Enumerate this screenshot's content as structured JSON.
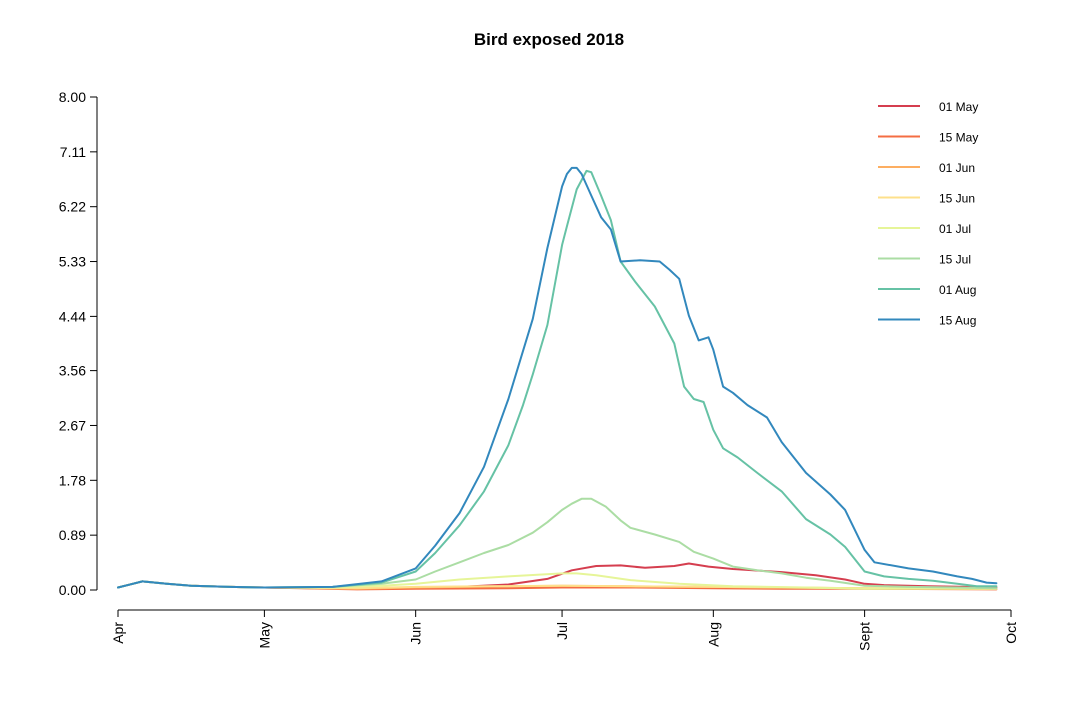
{
  "chart_data": {
    "type": "line",
    "title": "Bird exposed 2018",
    "xlabel": "",
    "ylabel": "",
    "ylim": [
      0,
      8
    ],
    "xlim": [
      "2018-04-01",
      "2018-10-01"
    ],
    "y_ticks": [
      "0.00",
      "0.89",
      "1.78",
      "2.67",
      "3.56",
      "4.44",
      "5.33",
      "6.22",
      "7.11",
      "8.00"
    ],
    "x_ticks": [
      {
        "label": "Apr",
        "date": "2018-04-01"
      },
      {
        "label": "May",
        "date": "2018-05-01"
      },
      {
        "label": "Jun",
        "date": "2018-06-01"
      },
      {
        "label": "Jul",
        "date": "2018-07-01"
      },
      {
        "label": "Aug",
        "date": "2018-08-01"
      },
      {
        "label": "Sept",
        "date": "2018-09-01"
      },
      {
        "label": "Oct",
        "date": "2018-10-01"
      }
    ],
    "grid": false,
    "legend_position": "top-right",
    "series": [
      {
        "name": "01 May",
        "color": "#d53e4f",
        "points": [
          [
            "2018-04-01",
            0.04
          ],
          [
            "2018-04-06",
            0.14
          ],
          [
            "2018-04-11",
            0.1
          ],
          [
            "2018-04-16",
            0.07
          ],
          [
            "2018-04-24",
            0.05
          ],
          [
            "2018-05-01",
            0.04
          ],
          [
            "2018-05-20",
            0.02
          ],
          [
            "2018-06-01",
            0.03
          ],
          [
            "2018-06-10",
            0.05
          ],
          [
            "2018-06-20",
            0.09
          ],
          [
            "2018-06-28",
            0.18
          ],
          [
            "2018-07-03",
            0.32
          ],
          [
            "2018-07-08",
            0.39
          ],
          [
            "2018-07-13",
            0.4
          ],
          [
            "2018-07-18",
            0.36
          ],
          [
            "2018-07-24",
            0.39
          ],
          [
            "2018-07-27",
            0.43
          ],
          [
            "2018-07-31",
            0.38
          ],
          [
            "2018-08-05",
            0.34
          ],
          [
            "2018-08-15",
            0.29
          ],
          [
            "2018-08-22",
            0.24
          ],
          [
            "2018-08-28",
            0.17
          ],
          [
            "2018-09-01",
            0.1
          ],
          [
            "2018-09-05",
            0.08
          ],
          [
            "2018-09-14",
            0.06
          ],
          [
            "2018-09-22",
            0.05
          ],
          [
            "2018-09-28",
            0.04
          ]
        ]
      },
      {
        "name": "15 May",
        "color": "#f46d43",
        "points": [
          [
            "2018-04-01",
            0.04
          ],
          [
            "2018-04-06",
            0.14
          ],
          [
            "2018-04-11",
            0.1
          ],
          [
            "2018-04-16",
            0.07
          ],
          [
            "2018-04-24",
            0.05
          ],
          [
            "2018-05-01",
            0.04
          ],
          [
            "2018-05-20",
            0.01
          ],
          [
            "2018-06-01",
            0.02
          ],
          [
            "2018-06-20",
            0.03
          ],
          [
            "2018-07-01",
            0.04
          ],
          [
            "2018-07-15",
            0.04
          ],
          [
            "2018-08-01",
            0.03
          ],
          [
            "2018-08-15",
            0.02
          ],
          [
            "2018-09-01",
            0.02
          ],
          [
            "2018-09-28",
            0.01
          ]
        ]
      },
      {
        "name": "01 Jun",
        "color": "#fdae61",
        "points": [
          [
            "2018-04-01",
            0.04
          ],
          [
            "2018-04-06",
            0.14
          ],
          [
            "2018-04-11",
            0.1
          ],
          [
            "2018-04-16",
            0.07
          ],
          [
            "2018-04-24",
            0.05
          ],
          [
            "2018-05-01",
            0.04
          ],
          [
            "2018-05-20",
            0.02
          ],
          [
            "2018-06-01",
            0.04
          ],
          [
            "2018-06-20",
            0.06
          ],
          [
            "2018-07-01",
            0.07
          ],
          [
            "2018-07-15",
            0.06
          ],
          [
            "2018-08-01",
            0.05
          ],
          [
            "2018-08-15",
            0.04
          ],
          [
            "2018-09-01",
            0.03
          ],
          [
            "2018-09-28",
            0.02
          ]
        ]
      },
      {
        "name": "15 Jun",
        "color": "#fee08b",
        "points": [
          [
            "2018-04-01",
            0.04
          ],
          [
            "2018-04-06",
            0.14
          ],
          [
            "2018-04-11",
            0.1
          ],
          [
            "2018-04-16",
            0.07
          ],
          [
            "2018-04-24",
            0.05
          ],
          [
            "2018-05-01",
            0.04
          ],
          [
            "2018-05-20",
            0.03
          ],
          [
            "2018-06-01",
            0.05
          ],
          [
            "2018-06-15",
            0.06
          ],
          [
            "2018-07-01",
            0.07
          ],
          [
            "2018-07-15",
            0.06
          ],
          [
            "2018-08-01",
            0.05
          ],
          [
            "2018-08-15",
            0.04
          ],
          [
            "2018-09-01",
            0.03
          ],
          [
            "2018-09-28",
            0.02
          ]
        ]
      },
      {
        "name": "01 Jul",
        "color": "#e6f598",
        "points": [
          [
            "2018-04-01",
            0.04
          ],
          [
            "2018-04-06",
            0.14
          ],
          [
            "2018-04-11",
            0.1
          ],
          [
            "2018-04-16",
            0.07
          ],
          [
            "2018-04-24",
            0.05
          ],
          [
            "2018-05-01",
            0.04
          ],
          [
            "2018-05-15",
            0.04
          ],
          [
            "2018-05-25",
            0.07
          ],
          [
            "2018-06-01",
            0.1
          ],
          [
            "2018-06-10",
            0.17
          ],
          [
            "2018-06-20",
            0.22
          ],
          [
            "2018-07-01",
            0.27
          ],
          [
            "2018-07-04",
            0.27
          ],
          [
            "2018-07-08",
            0.24
          ],
          [
            "2018-07-15",
            0.16
          ],
          [
            "2018-07-25",
            0.1
          ],
          [
            "2018-08-05",
            0.06
          ],
          [
            "2018-08-20",
            0.04
          ],
          [
            "2018-09-01",
            0.02
          ],
          [
            "2018-09-28",
            0.02
          ]
        ]
      },
      {
        "name": "15 Jul",
        "color": "#abdda4",
        "points": [
          [
            "2018-04-01",
            0.04
          ],
          [
            "2018-04-06",
            0.14
          ],
          [
            "2018-04-11",
            0.1
          ],
          [
            "2018-04-16",
            0.07
          ],
          [
            "2018-04-24",
            0.05
          ],
          [
            "2018-05-01",
            0.04
          ],
          [
            "2018-05-15",
            0.05
          ],
          [
            "2018-05-25",
            0.1
          ],
          [
            "2018-06-01",
            0.17
          ],
          [
            "2018-06-05",
            0.3
          ],
          [
            "2018-06-10",
            0.45
          ],
          [
            "2018-06-15",
            0.6
          ],
          [
            "2018-06-20",
            0.73
          ],
          [
            "2018-06-25",
            0.93
          ],
          [
            "2018-06-28",
            1.1
          ],
          [
            "2018-07-01",
            1.3
          ],
          [
            "2018-07-03",
            1.4
          ],
          [
            "2018-07-05",
            1.48
          ],
          [
            "2018-07-07",
            1.48
          ],
          [
            "2018-07-10",
            1.35
          ],
          [
            "2018-07-13",
            1.13
          ],
          [
            "2018-07-15",
            1.01
          ],
          [
            "2018-07-20",
            0.9
          ],
          [
            "2018-07-25",
            0.78
          ],
          [
            "2018-07-28",
            0.62
          ],
          [
            "2018-08-01",
            0.51
          ],
          [
            "2018-08-05",
            0.38
          ],
          [
            "2018-08-10",
            0.32
          ],
          [
            "2018-08-15",
            0.27
          ],
          [
            "2018-08-20",
            0.2
          ],
          [
            "2018-08-25",
            0.15
          ],
          [
            "2018-09-01",
            0.07
          ],
          [
            "2018-09-10",
            0.05
          ],
          [
            "2018-09-20",
            0.04
          ],
          [
            "2018-09-28",
            0.03
          ]
        ]
      },
      {
        "name": "01 Aug",
        "color": "#66c2a5",
        "points": [
          [
            "2018-04-01",
            0.04
          ],
          [
            "2018-04-06",
            0.14
          ],
          [
            "2018-04-11",
            0.1
          ],
          [
            "2018-04-16",
            0.07
          ],
          [
            "2018-04-24",
            0.05
          ],
          [
            "2018-05-01",
            0.04
          ],
          [
            "2018-05-15",
            0.05
          ],
          [
            "2018-05-25",
            0.12
          ],
          [
            "2018-06-01",
            0.3
          ],
          [
            "2018-06-05",
            0.6
          ],
          [
            "2018-06-10",
            1.05
          ],
          [
            "2018-06-15",
            1.6
          ],
          [
            "2018-06-20",
            2.35
          ],
          [
            "2018-06-23",
            3.0
          ],
          [
            "2018-06-25",
            3.5
          ],
          [
            "2018-06-28",
            4.3
          ],
          [
            "2018-07-01",
            5.6
          ],
          [
            "2018-07-02",
            5.9
          ],
          [
            "2018-07-04",
            6.5
          ],
          [
            "2018-07-06",
            6.8
          ],
          [
            "2018-07-07",
            6.78
          ],
          [
            "2018-07-09",
            6.4
          ],
          [
            "2018-07-11",
            6.0
          ],
          [
            "2018-07-13",
            5.33
          ],
          [
            "2018-07-16",
            5.0
          ],
          [
            "2018-07-20",
            4.6
          ],
          [
            "2018-07-24",
            4.0
          ],
          [
            "2018-07-26",
            3.3
          ],
          [
            "2018-07-28",
            3.1
          ],
          [
            "2018-07-30",
            3.05
          ],
          [
            "2018-08-01",
            2.6
          ],
          [
            "2018-08-03",
            2.3
          ],
          [
            "2018-08-06",
            2.15
          ],
          [
            "2018-08-10",
            1.9
          ],
          [
            "2018-08-15",
            1.6
          ],
          [
            "2018-08-20",
            1.15
          ],
          [
            "2018-08-25",
            0.9
          ],
          [
            "2018-08-28",
            0.7
          ],
          [
            "2018-09-01",
            0.3
          ],
          [
            "2018-09-05",
            0.22
          ],
          [
            "2018-09-10",
            0.18
          ],
          [
            "2018-09-15",
            0.15
          ],
          [
            "2018-09-20",
            0.1
          ],
          [
            "2018-09-24",
            0.06
          ],
          [
            "2018-09-28",
            0.06
          ]
        ]
      },
      {
        "name": "15 Aug",
        "color": "#3288bd",
        "points": [
          [
            "2018-04-01",
            0.04
          ],
          [
            "2018-04-06",
            0.14
          ],
          [
            "2018-04-11",
            0.1
          ],
          [
            "2018-04-16",
            0.07
          ],
          [
            "2018-04-24",
            0.05
          ],
          [
            "2018-05-01",
            0.04
          ],
          [
            "2018-05-15",
            0.05
          ],
          [
            "2018-05-25",
            0.14
          ],
          [
            "2018-06-01",
            0.35
          ],
          [
            "2018-06-05",
            0.72
          ],
          [
            "2018-06-10",
            1.25
          ],
          [
            "2018-06-15",
            2.0
          ],
          [
            "2018-06-20",
            3.1
          ],
          [
            "2018-06-25",
            4.4
          ],
          [
            "2018-06-28",
            5.55
          ],
          [
            "2018-07-01",
            6.55
          ],
          [
            "2018-07-02",
            6.75
          ],
          [
            "2018-07-03",
            6.85
          ],
          [
            "2018-07-04",
            6.85
          ],
          [
            "2018-07-05",
            6.75
          ],
          [
            "2018-07-07",
            6.4
          ],
          [
            "2018-07-09",
            6.05
          ],
          [
            "2018-07-11",
            5.85
          ],
          [
            "2018-07-13",
            5.33
          ],
          [
            "2018-07-17",
            5.35
          ],
          [
            "2018-07-21",
            5.33
          ],
          [
            "2018-07-23",
            5.2
          ],
          [
            "2018-07-25",
            5.05
          ],
          [
            "2018-07-27",
            4.45
          ],
          [
            "2018-07-29",
            4.05
          ],
          [
            "2018-07-31",
            4.1
          ],
          [
            "2018-08-01",
            3.9
          ],
          [
            "2018-08-03",
            3.3
          ],
          [
            "2018-08-05",
            3.2
          ],
          [
            "2018-08-08",
            3.0
          ],
          [
            "2018-08-12",
            2.8
          ],
          [
            "2018-08-15",
            2.4
          ],
          [
            "2018-08-20",
            1.9
          ],
          [
            "2018-08-25",
            1.55
          ],
          [
            "2018-08-28",
            1.3
          ],
          [
            "2018-09-01",
            0.65
          ],
          [
            "2018-09-03",
            0.45
          ],
          [
            "2018-09-10",
            0.35
          ],
          [
            "2018-09-15",
            0.3
          ],
          [
            "2018-09-20",
            0.22
          ],
          [
            "2018-09-23",
            0.18
          ],
          [
            "2018-09-26",
            0.12
          ],
          [
            "2018-09-28",
            0.11
          ]
        ]
      }
    ]
  }
}
